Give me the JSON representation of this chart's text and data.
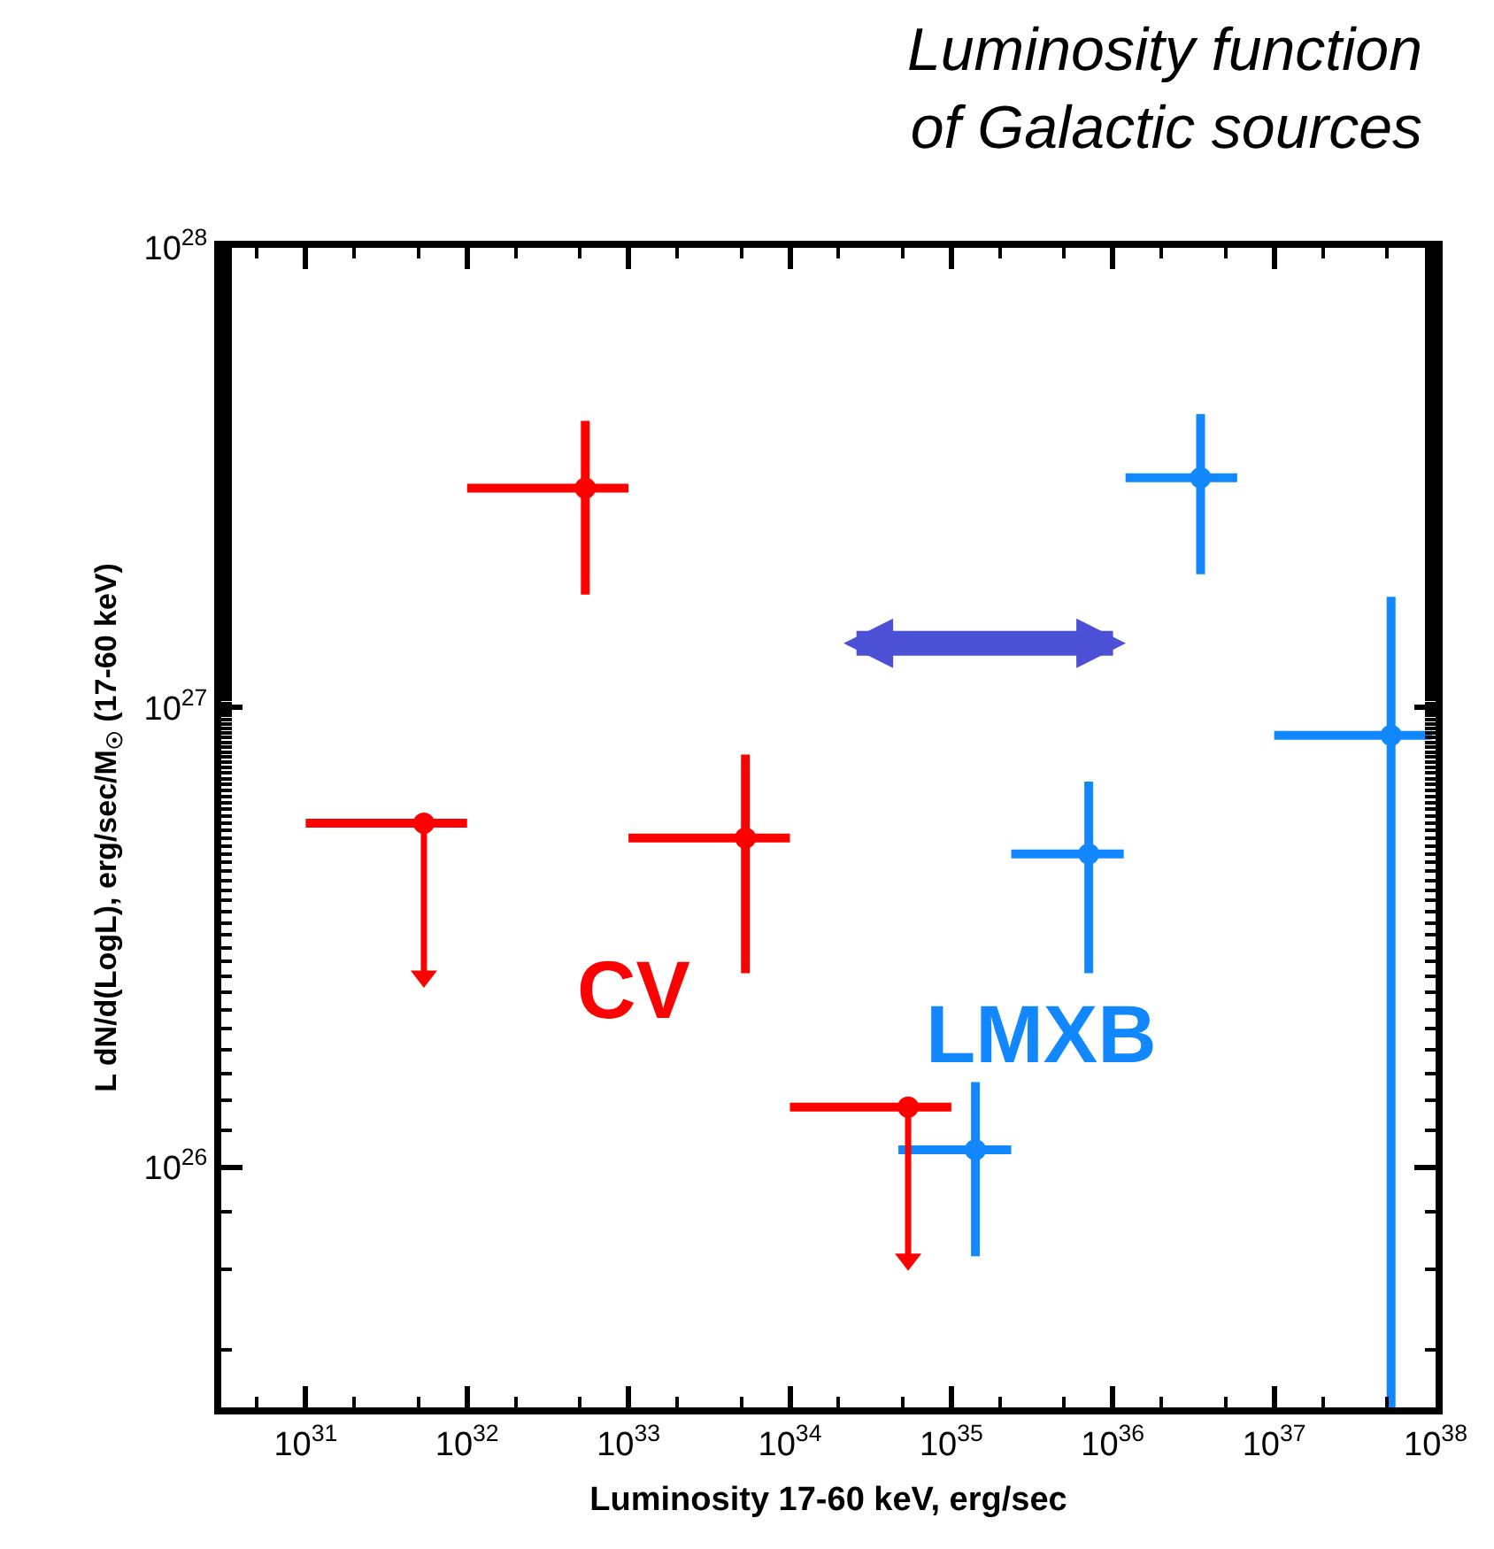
{
  "chart_data": {
    "type": "scatter",
    "title": "Luminosity function\nof Galactic sources",
    "xlabel": "Luminosity 17-60 keV, erg/sec",
    "ylabel": "L dN/d(LogL), erg/sec/M$_{☉}$ (17-60 keV)",
    "log": "xy",
    "xlim": [
      3e+30,
      1e+38
    ],
    "ylim": [
      3e+25,
      1e+28
    ],
    "xticks": [
      {
        "value": 1e+31,
        "label": "10$^{31}$"
      },
      {
        "value": 1e+32,
        "label": "10$^{32}$"
      },
      {
        "value": 1e+33,
        "label": "10$^{33}$"
      },
      {
        "value": 1e+34,
        "label": "10$^{34}$"
      },
      {
        "value": 1e+35,
        "label": "10$^{35}$"
      },
      {
        "value": 1e+36,
        "label": "10$^{36}$"
      },
      {
        "value": 1e+37,
        "label": "10$^{37}$"
      },
      {
        "value": 1e+38,
        "label": "10$^{38}$"
      }
    ],
    "yticks": [
      {
        "value": 1e+26,
        "label": "10$^{26}$"
      },
      {
        "value": 1e+27,
        "label": "10$^{27}$"
      },
      {
        "value": 1e+28,
        "label": "10$^{28}$"
      }
    ],
    "legend": "bottom",
    "marker": "circle",
    "series": [
      {
        "name": "CV",
        "color": "#ff0000",
        "x": [
          5.4e+32,
          5.4e+31,
          5.3e+33,
          5.4e+34
        ],
        "values": [
          3e+27,
          5.6e+26,
          5.2e+26,
          1.35e+26
        ],
        "errors": [
          [
            1.76e+27,
            4.2e+27
          ],
          [
            2.6e+26,
            5.6e+26
          ],
          [
            2.64e+26,
            7.9e+26
          ],
          [
            6.3e+25,
            1.35e+26
          ]
        ],
        "xerrors": [
          [
            1e+32,
            1e+33
          ],
          [
            1e+31,
            1e+32
          ],
          [
            1e+33,
            1e+34
          ],
          [
            1e+34,
            1e+35
          ]
        ]
      },
      {
        "type": "scatter",
        "marker": "triangle",
        "color": "#ff0000",
        "x": [
          5.4e+31,
          5.4e+34
        ],
        "values": [
          2.6e+26,
          6.3e+25
        ]
      },
      {
        "name": "LMXB",
        "color": "#1188ff",
        "x": [
          3.5e+36,
          5.3e+37,
          7.1e+35,
          1.41e+35
        ],
        "values": [
          3.16e+27,
          8.7e+26,
          4.8e+26,
          1.09e+26
        ],
        "errors": [
          [
            1.95e+27,
            4.35e+27
          ],
          [
            3e+25,
            1.74e+27
          ],
          [
            2.64e+26,
            6.9e+26
          ],
          [
            6.4e+25,
            1.53e+26
          ]
        ],
        "xerrors": [
          [
            1.2e+36,
            5.9e+36
          ],
          [
            1e+37,
            9.5e+37
          ],
          [
            2.35e+35,
            1.17e+36
          ],
          [
            4.7e+34,
            2.35e+35
          ]
        ]
      }
    ]
  }
}
